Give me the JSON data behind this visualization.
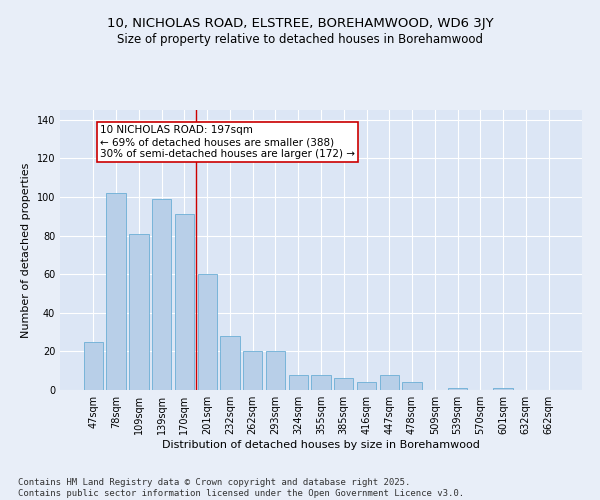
{
  "title": "10, NICHOLAS ROAD, ELSTREE, BOREHAMWOOD, WD6 3JY",
  "subtitle": "Size of property relative to detached houses in Borehamwood",
  "xlabel": "Distribution of detached houses by size in Borehamwood",
  "ylabel": "Number of detached properties",
  "categories": [
    "47sqm",
    "78sqm",
    "109sqm",
    "139sqm",
    "170sqm",
    "201sqm",
    "232sqm",
    "262sqm",
    "293sqm",
    "324sqm",
    "355sqm",
    "385sqm",
    "416sqm",
    "447sqm",
    "478sqm",
    "509sqm",
    "539sqm",
    "570sqm",
    "601sqm",
    "632sqm",
    "662sqm"
  ],
  "values": [
    25,
    102,
    81,
    99,
    91,
    60,
    28,
    20,
    20,
    8,
    8,
    6,
    4,
    8,
    4,
    0,
    1,
    0,
    1,
    0,
    0
  ],
  "bar_color": "#b8cfe8",
  "bar_edge_color": "#6baed6",
  "reference_line_x": 4.5,
  "annotation_text": "10 NICHOLAS ROAD: 197sqm\n← 69% of detached houses are smaller (388)\n30% of semi-detached houses are larger (172) →",
  "annotation_box_color": "#ffffff",
  "annotation_box_edge_color": "#cc0000",
  "reference_line_color": "#cc0000",
  "ylim": [
    0,
    145
  ],
  "yticks": [
    0,
    20,
    40,
    60,
    80,
    100,
    120,
    140
  ],
  "background_color": "#dce6f5",
  "fig_background_color": "#e8eef8",
  "footer_text": "Contains HM Land Registry data © Crown copyright and database right 2025.\nContains public sector information licensed under the Open Government Licence v3.0.",
  "title_fontsize": 9.5,
  "subtitle_fontsize": 8.5,
  "xlabel_fontsize": 8,
  "ylabel_fontsize": 8,
  "tick_fontsize": 7,
  "annotation_fontsize": 7.5,
  "footer_fontsize": 6.5
}
